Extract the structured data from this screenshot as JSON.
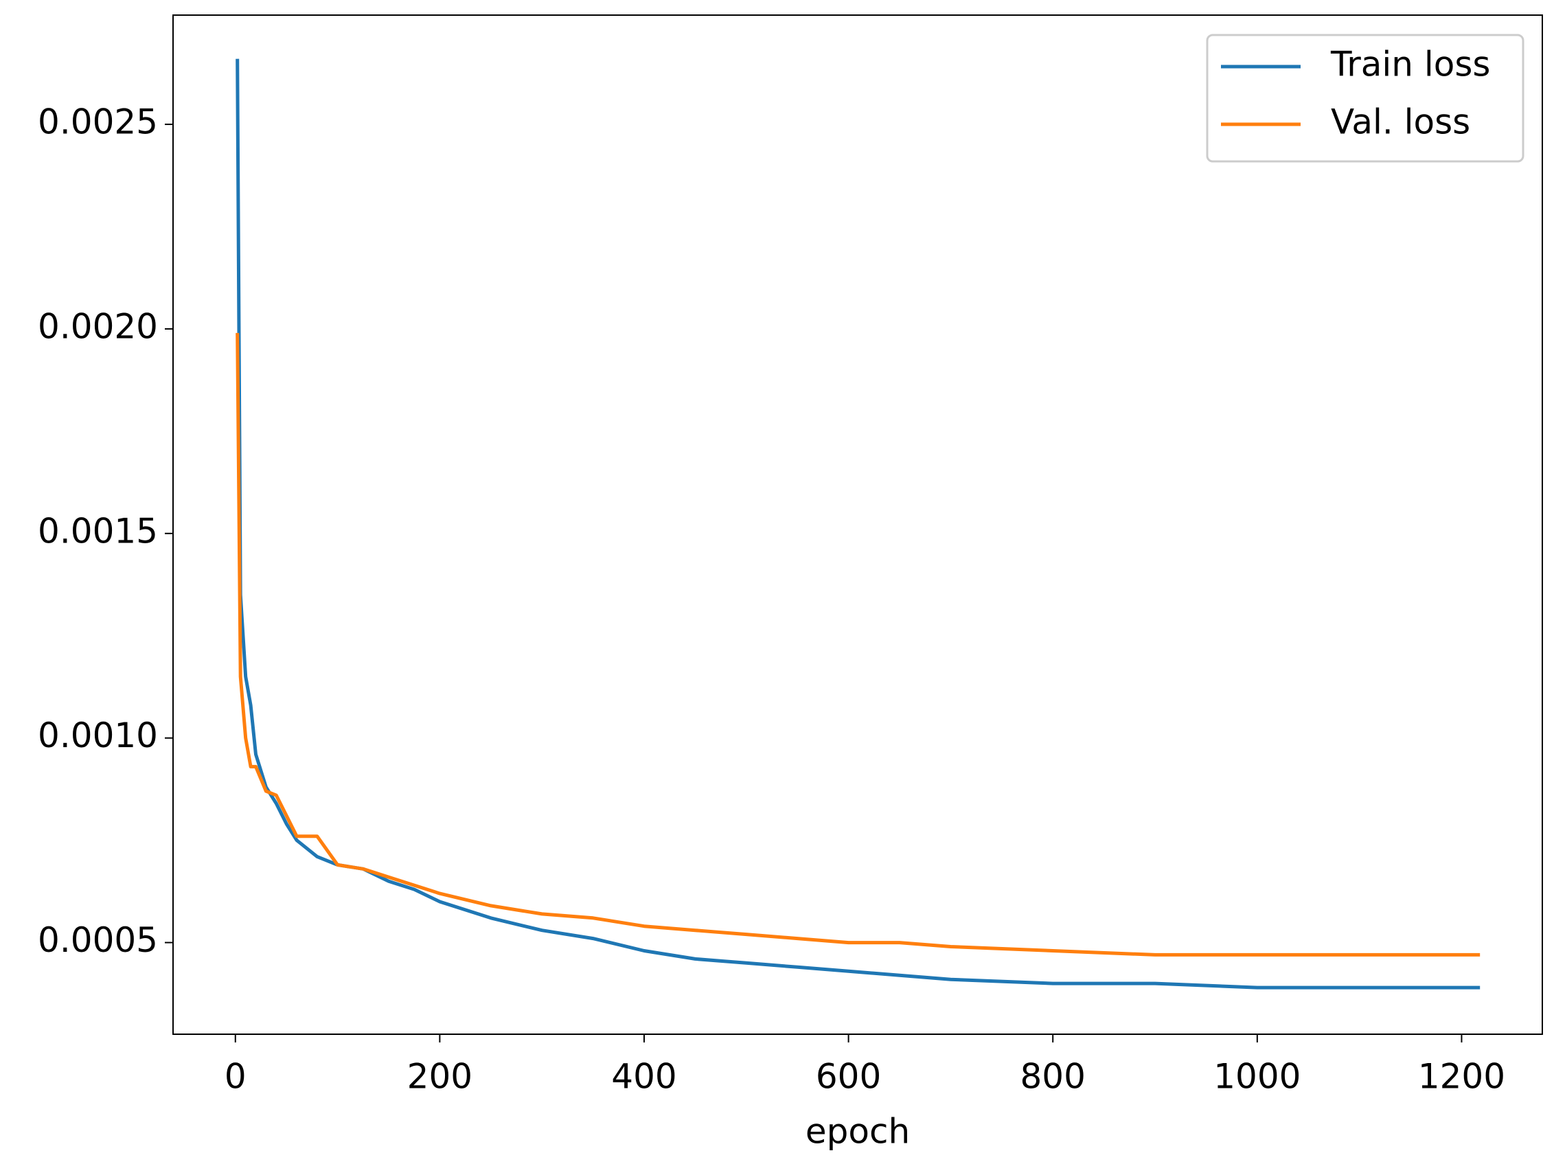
{
  "chart_data": {
    "type": "line",
    "xlabel": "epoch",
    "x": [
      2,
      5,
      10,
      15,
      20,
      30,
      40,
      50,
      60,
      80,
      100,
      125,
      150,
      175,
      200,
      250,
      300,
      350,
      400,
      450,
      500,
      550,
      600,
      650,
      700,
      800,
      900,
      1000,
      1100,
      1218
    ],
    "series": [
      {
        "name": "Train loss",
        "color": "#1f77b4",
        "values": [
          0.00266,
          0.00135,
          0.00115,
          0.00108,
          0.00096,
          0.00088,
          0.00084,
          0.00079,
          0.00075,
          0.00071,
          0.00069,
          0.00068,
          0.00065,
          0.00063,
          0.0006,
          0.00056,
          0.00053,
          0.00051,
          0.00048,
          0.00046,
          0.00045,
          0.00044,
          0.00043,
          0.00042,
          0.00041,
          0.0004,
          0.0004,
          0.00039,
          0.00039,
          0.00039
        ]
      },
      {
        "name": "Val. loss",
        "color": "#ff7f0e",
        "values": [
          0.00199,
          0.00115,
          0.001,
          0.00093,
          0.00093,
          0.00087,
          0.00086,
          0.00081,
          0.00076,
          0.00076,
          0.00069,
          0.00068,
          0.00066,
          0.00064,
          0.00062,
          0.00059,
          0.00057,
          0.00056,
          0.00054,
          0.00053,
          0.00052,
          0.00051,
          0.0005,
          0.0005,
          0.00049,
          0.00048,
          0.00047,
          0.00047,
          0.00047,
          0.00047
        ]
      }
    ],
    "xlim": [
      -61,
      1279
    ],
    "ylim": [
      0.000276,
      0.002767
    ],
    "xticks": [
      0,
      200,
      400,
      600,
      800,
      1000,
      1200
    ],
    "yticks": [
      0.0005,
      {
        "value": 0.001,
        "label": "0.0010"
      },
      0.0015,
      {
        "value": 0.002,
        "label": "0.0020"
      },
      0.0025
    ],
    "legend": "upper right"
  }
}
